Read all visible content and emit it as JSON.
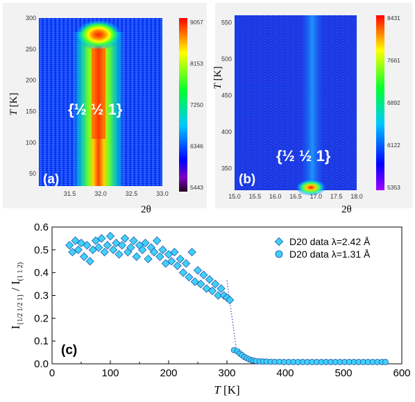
{
  "chart_data": [
    {
      "panel": "(a)",
      "type": "heatmap",
      "annotation": "{½ ½ 1}",
      "xlabel": "2θ",
      "ylabel_var": "T",
      "ylabel_unit": "[K]",
      "xlim": [
        31.0,
        33.0
      ],
      "ylim": [
        30,
        300
      ],
      "xticks": [
        "31.5",
        "32.0",
        "32.5",
        "33.0"
      ],
      "yticks": [
        "50",
        "100",
        "150",
        "200",
        "250",
        "300"
      ],
      "colorbar_ticks": [
        "9057",
        "8153",
        "7250",
        "6346",
        "5443"
      ],
      "peak_center_2theta": 31.95,
      "peak_onset_T": 290
    },
    {
      "panel": "(b)",
      "type": "heatmap",
      "annotation": "{½ ½ 1}",
      "xlabel": "2θ",
      "ylabel_var": "T",
      "ylabel_unit": "[K]",
      "xlim": [
        15.0,
        18.0
      ],
      "ylim": [
        320,
        560
      ],
      "xticks": [
        "15.0",
        "15.5",
        "16.0",
        "16.5",
        "17.0",
        "17.5",
        "18.0"
      ],
      "yticks": [
        "350",
        "400",
        "450",
        "500",
        "550"
      ],
      "colorbar_ticks": [
        "8431",
        "7661",
        "6892",
        "6122",
        "5353"
      ],
      "peak_center_2theta": 16.85
    },
    {
      "panel": "(c)",
      "type": "scatter",
      "xlabel_var": "T",
      "xlabel_unit": "[K]",
      "ylabel_main": "I",
      "ylabel_sub1": "{1/2 1/2 1}",
      "ylabel_slash": "/ I",
      "ylabel_sub2": "(1 1 2)",
      "xlim": [
        0,
        600
      ],
      "ylim": [
        0.0,
        0.6
      ],
      "xticks": [
        "0",
        "100",
        "200",
        "300",
        "400",
        "500",
        "600"
      ],
      "yticks": [
        "0.0",
        "0.1",
        "0.2",
        "0.3",
        "0.4",
        "0.5",
        "0.6"
      ],
      "marker_color": "#40d0f8",
      "series": [
        {
          "name": "D20 data λ=2.42 Å",
          "marker": "diamond",
          "points": [
            [
              30,
              0.52
            ],
            [
              35,
              0.49
            ],
            [
              40,
              0.54
            ],
            [
              45,
              0.5
            ],
            [
              50,
              0.53
            ],
            [
              55,
              0.47
            ],
            [
              60,
              0.52
            ],
            [
              65,
              0.45
            ],
            [
              70,
              0.5
            ],
            [
              75,
              0.54
            ],
            [
              80,
              0.51
            ],
            [
              85,
              0.55
            ],
            [
              90,
              0.49
            ],
            [
              95,
              0.52
            ],
            [
              100,
              0.56
            ],
            [
              105,
              0.5
            ],
            [
              110,
              0.53
            ],
            [
              115,
              0.48
            ],
            [
              120,
              0.52
            ],
            [
              125,
              0.55
            ],
            [
              130,
              0.49
            ],
            [
              135,
              0.51
            ],
            [
              140,
              0.54
            ],
            [
              145,
              0.47
            ],
            [
              150,
              0.52
            ],
            [
              155,
              0.5
            ],
            [
              160,
              0.53
            ],
            [
              165,
              0.46
            ],
            [
              170,
              0.51
            ],
            [
              175,
              0.49
            ],
            [
              180,
              0.54
            ],
            [
              185,
              0.47
            ],
            [
              190,
              0.5
            ],
            [
              195,
              0.44
            ],
            [
              200,
              0.48
            ],
            [
              205,
              0.45
            ],
            [
              210,
              0.49
            ],
            [
              215,
              0.43
            ],
            [
              220,
              0.46
            ],
            [
              225,
              0.4
            ],
            [
              230,
              0.44
            ],
            [
              235,
              0.38
            ],
            [
              240,
              0.49
            ],
            [
              245,
              0.36
            ],
            [
              250,
              0.41
            ],
            [
              255,
              0.35
            ],
            [
              260,
              0.39
            ],
            [
              265,
              0.33
            ],
            [
              270,
              0.37
            ],
            [
              275,
              0.32
            ],
            [
              280,
              0.35
            ],
            [
              285,
              0.3
            ],
            [
              290,
              0.33
            ],
            [
              295,
              0.3
            ],
            [
              300,
              0.29
            ],
            [
              305,
              0.28
            ]
          ]
        },
        {
          "name": "D20 data λ=1.31 Å",
          "marker": "circle",
          "points": [
            [
              312,
              0.06
            ],
            [
              318,
              0.055
            ],
            [
              322,
              0.045
            ],
            [
              326,
              0.038
            ],
            [
              330,
              0.03
            ],
            [
              334,
              0.025
            ],
            [
              338,
              0.02
            ],
            [
              342,
              0.016
            ],
            [
              346,
              0.014
            ],
            [
              350,
              0.012
            ],
            [
              356,
              0.011
            ],
            [
              362,
              0.01
            ],
            [
              368,
              0.01
            ],
            [
              375,
              0.009
            ],
            [
              382,
              0.009
            ],
            [
              390,
              0.009
            ],
            [
              398,
              0.008
            ],
            [
              406,
              0.008
            ],
            [
              414,
              0.008
            ],
            [
              422,
              0.008
            ],
            [
              430,
              0.008
            ],
            [
              438,
              0.008
            ],
            [
              446,
              0.008
            ],
            [
              454,
              0.008
            ],
            [
              462,
              0.008
            ],
            [
              470,
              0.008
            ],
            [
              478,
              0.008
            ],
            [
              486,
              0.008
            ],
            [
              494,
              0.008
            ],
            [
              502,
              0.008
            ],
            [
              510,
              0.008
            ],
            [
              518,
              0.008
            ],
            [
              526,
              0.008
            ],
            [
              534,
              0.008
            ],
            [
              542,
              0.008
            ],
            [
              550,
              0.008
            ],
            [
              558,
              0.008
            ],
            [
              566,
              0.008
            ],
            [
              572,
              0.008
            ]
          ]
        }
      ]
    }
  ]
}
